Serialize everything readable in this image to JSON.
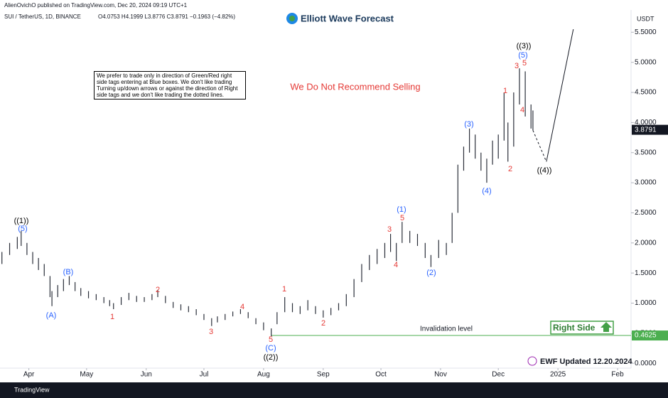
{
  "chart_data": {
    "type": "hlbar",
    "publisher": "AlienOvichO published on TradingView.com, Dec 20, 2024 09:19 UTC+1",
    "symbol": "SUI / TetherUS, 1D, BINANCE",
    "ohlc_text": "O4.0753 H4.1999 L3.8776 C3.8791 −0.1963 (−4.82%)",
    "logo": "Elliott Wave Forecast",
    "currency": "USDT",
    "note": "We prefer to trade only in direction of Green/Red right side tags entering at Blue boxes. We don't like trading Turning up/down arrows or against the direction of Right side tags and we don't like trading the dotted lines.",
    "warning": "We Do Not Recommend Selling",
    "right_side": "Right Side",
    "updated": "EWF Updated 12.20.2024",
    "footer": "TradingView",
    "color": "#2a2e39",
    "x": [
      78,
      82,
      86,
      88,
      91,
      94,
      97,
      100,
      103,
      104,
      107,
      110,
      113,
      116,
      119,
      123,
      127,
      131,
      134,
      136,
      140,
      144,
      148,
      152,
      156,
      159,
      163,
      167,
      171,
      175,
      179,
      183,
      187,
      190,
      194,
      198,
      202,
      206,
      210,
      214,
      218,
      221,
      225,
      229,
      233,
      237,
      241,
      245,
      249,
      253,
      257,
      261,
      265,
      269,
      273,
      277,
      280,
      283,
      286,
      290,
      294,
      298,
      301,
      305,
      309,
      312,
      315,
      318,
      321,
      324,
      327,
      330,
      333,
      336,
      339,
      341,
      344,
      347,
      350,
      353,
      354
    ],
    "high": [
      1.85,
      2.0,
      2.1,
      2.2,
      2.0,
      1.85,
      1.75,
      1.65,
      1.45,
      1.2,
      1.3,
      1.4,
      1.45,
      1.35,
      1.25,
      1.2,
      1.15,
      1.1,
      1.05,
      1.0,
      1.1,
      1.17,
      1.12,
      1.1,
      1.15,
      1.22,
      1.12,
      1.02,
      0.98,
      0.95,
      0.9,
      0.82,
      0.75,
      0.78,
      0.82,
      0.86,
      0.9,
      0.85,
      0.75,
      0.68,
      0.58,
      0.85,
      1.1,
      1.0,
      0.95,
      1.05,
      0.95,
      0.88,
      0.92,
      1.0,
      1.15,
      1.4,
      1.65,
      1.8,
      1.9,
      2.0,
      2.15,
      2.0,
      2.35,
      2.2,
      2.15,
      2.0,
      1.8,
      2.05,
      2.0,
      2.5,
      3.3,
      3.6,
      3.9,
      3.8,
      3.5,
      3.4,
      3.7,
      3.8,
      4.5,
      4.0,
      4.5,
      4.9,
      4.85,
      4.3,
      4.2
    ],
    "low": [
      1.65,
      1.8,
      1.9,
      1.95,
      1.8,
      1.65,
      1.55,
      1.45,
      1.1,
      0.95,
      1.1,
      1.2,
      1.3,
      1.2,
      1.12,
      1.08,
      1.05,
      1.0,
      0.95,
      0.9,
      0.97,
      1.05,
      1.02,
      1.02,
      1.05,
      1.1,
      1.0,
      0.92,
      0.88,
      0.85,
      0.8,
      0.72,
      0.62,
      0.68,
      0.72,
      0.78,
      0.82,
      0.75,
      0.65,
      0.55,
      0.45,
      0.65,
      0.85,
      0.85,
      0.82,
      0.88,
      0.82,
      0.76,
      0.8,
      0.88,
      0.95,
      1.1,
      1.35,
      1.55,
      1.65,
      1.75,
      1.85,
      1.7,
      2.0,
      2.0,
      1.95,
      1.75,
      1.6,
      1.75,
      1.8,
      2.0,
      2.5,
      3.2,
      3.5,
      3.4,
      3.2,
      3.0,
      3.3,
      3.4,
      3.7,
      3.35,
      3.6,
      4.3,
      4.1,
      3.9,
      3.87
    ],
    "projection_dashed": {
      "x": [
        354,
        361
      ],
      "values": [
        3.87,
        3.35
      ]
    },
    "projection": {
      "x": [
        361,
        375
      ],
      "values": [
        3.35,
        5.55
      ]
    },
    "last_price": 3.8791,
    "invalidation": {
      "label": "Invalidation level",
      "value": 0.4625
    },
    "xlim": [
      77,
      405
    ],
    "ylim": [
      -0.08,
      5.87
    ],
    "xticks": [
      {
        "value": 92,
        "label": "Apr"
      },
      {
        "value": 122,
        "label": "May"
      },
      {
        "value": 153,
        "label": "Jun"
      },
      {
        "value": 183,
        "label": "Jul"
      },
      {
        "value": 214,
        "label": "Aug"
      },
      {
        "value": 245,
        "label": "Sep"
      },
      {
        "value": 275,
        "label": "Oct"
      },
      {
        "value": 306,
        "label": "Nov"
      },
      {
        "value": 336,
        "label": "Dec"
      },
      {
        "value": 367,
        "label": "2025"
      },
      {
        "value": 398,
        "label": "Feb"
      }
    ],
    "yticks": [
      {
        "value": 0,
        "label": "0.0000"
      },
      {
        "value": 0.5,
        "label": "0.5000"
      },
      {
        "value": 1,
        "label": "1.0000"
      },
      {
        "value": 1.5,
        "label": "1.5000"
      },
      {
        "value": 2,
        "label": "2.0000"
      },
      {
        "value": 2.5,
        "label": "2.5000"
      },
      {
        "value": 3,
        "label": "3.0000"
      },
      {
        "value": 3.5,
        "label": "3.5000"
      },
      {
        "value": 4,
        "label": "4.0000"
      },
      {
        "value": 4.5,
        "label": "4.5000"
      },
      {
        "value": 5,
        "label": "5.0000"
      },
      {
        "value": 5.5,
        "label": "5.5000"
      }
    ],
    "wave_labels": [
      {
        "text": "((1))",
        "color": "#000000"
      },
      {
        "text": "(5)",
        "color": "#2962ff"
      },
      {
        "text": "(A)",
        "color": "#2962ff"
      },
      {
        "text": "(B)",
        "color": "#2962ff"
      },
      {
        "text": "1",
        "color": "#e53935"
      },
      {
        "text": "2",
        "color": "#e53935"
      },
      {
        "text": "3",
        "color": "#e53935"
      },
      {
        "text": "4",
        "color": "#e53935"
      },
      {
        "text": "5",
        "color": "#e53935"
      },
      {
        "text": "(C)",
        "color": "#2962ff"
      },
      {
        "text": "((2))",
        "color": "#000000"
      },
      {
        "text": "1",
        "color": "#e53935"
      },
      {
        "text": "2",
        "color": "#e53935"
      },
      {
        "text": "3",
        "color": "#e53935"
      },
      {
        "text": "4",
        "color": "#e53935"
      },
      {
        "text": "5",
        "color": "#e53935"
      },
      {
        "text": "(1)",
        "color": "#2962ff"
      },
      {
        "text": "(2)",
        "color": "#2962ff"
      },
      {
        "text": "(3)",
        "color": "#2962ff"
      },
      {
        "text": "(4)",
        "color": "#2962ff"
      },
      {
        "text": "1",
        "color": "#e53935"
      },
      {
        "text": "2",
        "color": "#e53935"
      },
      {
        "text": "3",
        "color": "#e53935"
      },
      {
        "text": "5",
        "color": "#e53935"
      },
      {
        "text": "4",
        "color": "#e53935"
      },
      {
        "text": "(5)",
        "color": "#2962ff"
      },
      {
        "text": "((3))",
        "color": "#000000"
      },
      {
        "text": "((4))",
        "color": "#000000"
      }
    ]
  }
}
